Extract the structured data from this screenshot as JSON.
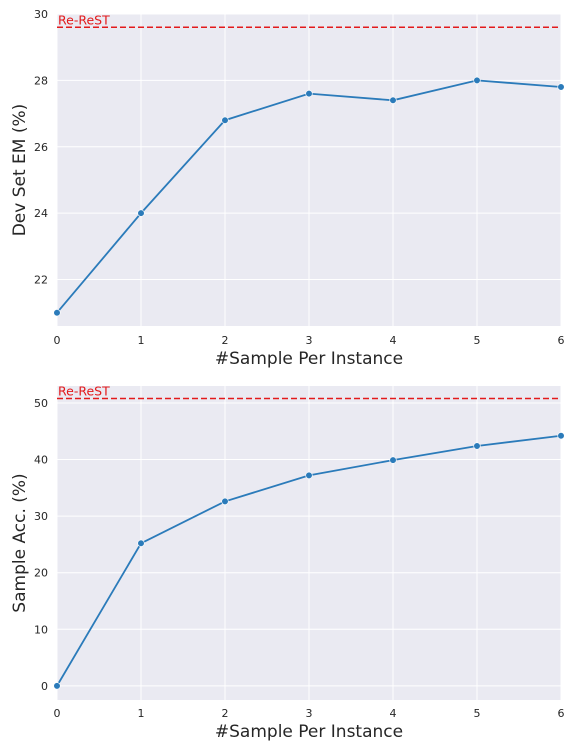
{
  "chart_data": [
    {
      "type": "line",
      "xlabel": "#Sample Per Instance",
      "ylabel": "Dev Set EM (%)",
      "x": [
        0,
        1,
        2,
        3,
        4,
        5,
        6
      ],
      "xticks": [
        "0",
        "1",
        "2",
        "3",
        "4",
        "5",
        "6"
      ],
      "xlim": [
        0,
        6
      ],
      "yticks": [
        "22",
        "24",
        "26",
        "28",
        "30"
      ],
      "ylim": [
        20.6,
        30.0
      ],
      "grid": true,
      "series": [
        {
          "values": [
            21.0,
            24.0,
            26.8,
            27.6,
            27.4,
            28.0,
            27.8
          ],
          "color": "#2b7bba"
        }
      ],
      "reference_line": {
        "label": "Re-ReST",
        "value": 29.6,
        "color": "#e31a1c"
      }
    },
    {
      "type": "line",
      "xlabel": "#Sample Per Instance",
      "ylabel": "Sample Acc. (%)",
      "x": [
        0,
        1,
        2,
        3,
        4,
        5,
        6
      ],
      "xticks": [
        "0",
        "1",
        "2",
        "3",
        "4",
        "5",
        "6"
      ],
      "xlim": [
        0,
        6
      ],
      "yticks": [
        "0",
        "10",
        "20",
        "30",
        "40",
        "50"
      ],
      "ylim": [
        -2.5,
        53.0
      ],
      "grid": true,
      "series": [
        {
          "values": [
            0.0,
            25.2,
            32.6,
            37.2,
            39.9,
            42.4,
            44.2
          ],
          "color": "#2b7bba"
        }
      ],
      "reference_line": {
        "label": "Re-ReST",
        "value": 50.8,
        "color": "#e31a1c"
      }
    }
  ]
}
